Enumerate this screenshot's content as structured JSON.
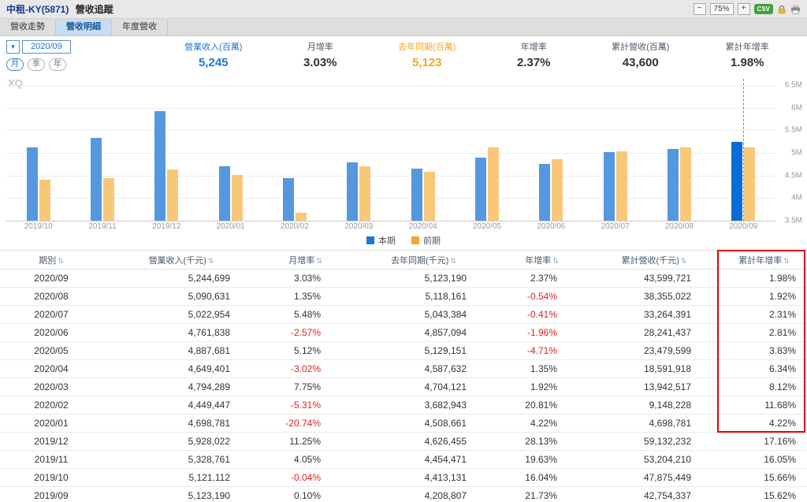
{
  "header": {
    "stock_title": "中租-KY(5871)",
    "page_title": "營收追蹤",
    "zoom_out": "−",
    "zoom_level": "75%",
    "zoom_in": "+",
    "csv_label": "CSV"
  },
  "tabs": [
    {
      "label": "營收走勢",
      "active": false
    },
    {
      "label": "營收明細",
      "active": true
    },
    {
      "label": "年度營收",
      "active": false
    }
  ],
  "period_select": {
    "arrow": "▼",
    "value": "2020/09"
  },
  "freq_buttons": [
    {
      "label": "月",
      "active": true
    },
    {
      "label": "季",
      "active": false
    },
    {
      "label": "年",
      "active": false
    }
  ],
  "stats": [
    {
      "label": "營業收入(百萬)",
      "value": "5,245",
      "color": "blue"
    },
    {
      "label": "月增率",
      "value": "3.03%",
      "color": "dark"
    },
    {
      "label": "去年同期(百萬)",
      "value": "5,123",
      "color": "orange"
    },
    {
      "label": "年增率",
      "value": "2.37%",
      "color": "dark"
    },
    {
      "label": "累計營收(百萬)",
      "value": "43,600",
      "color": "dark"
    },
    {
      "label": "累計年增率",
      "value": "1.98%",
      "color": "dark"
    }
  ],
  "chart_data": {
    "type": "bar",
    "watermark": "XQ",
    "categories": [
      "2019/10",
      "2019/11",
      "2019/12",
      "2020/01",
      "2020/02",
      "2020/03",
      "2020/04",
      "2020/05",
      "2020/06",
      "2020/07",
      "2020/08",
      "2020/09"
    ],
    "series": [
      {
        "name": "本期",
        "color": "#1878d8",
        "values": [
          5.12,
          5.33,
          5.93,
          4.7,
          4.45,
          4.79,
          4.65,
          4.89,
          4.76,
          5.02,
          5.09,
          5.24
        ]
      },
      {
        "name": "前期",
        "color": "#f0a830",
        "values": [
          4.41,
          4.45,
          4.63,
          4.51,
          3.68,
          4.7,
          4.59,
          5.13,
          4.86,
          5.04,
          5.12,
          5.12
        ]
      }
    ],
    "ylim": [
      3.5,
      6.5
    ],
    "ytick_labels": [
      "6.5M",
      "6M",
      "5.5M",
      "5M",
      "4.5M",
      "4M",
      "3.5M"
    ],
    "legend": [
      {
        "label": "本期",
        "color": "#1878d8"
      },
      {
        "label": "前期",
        "color": "#f0a830"
      }
    ],
    "highlight_index": 11,
    "title": "",
    "xlabel": "",
    "ylabel": ""
  },
  "table": {
    "sort_icon": "⇅",
    "headers": [
      "期別",
      "營業收入(千元)",
      "月增率",
      "去年同期(千元)",
      "年增率",
      "累計營收(千元)",
      "累計年增率"
    ],
    "rows": [
      [
        "2020/09",
        "5,244,699",
        "3.03%",
        "5,123,190",
        "2.37%",
        "43,599,721",
        "1.98%"
      ],
      [
        "2020/08",
        "5,090,631",
        "1.35%",
        "5,118,161",
        "-0.54%",
        "38,355,022",
        "1.92%"
      ],
      [
        "2020/07",
        "5,022,954",
        "5.48%",
        "5,043,384",
        "-0.41%",
        "33,264,391",
        "2.31%"
      ],
      [
        "2020/06",
        "4,761,838",
        "-2.57%",
        "4,857,094",
        "-1.96%",
        "28,241,437",
        "2.81%"
      ],
      [
        "2020/05",
        "4,887,681",
        "5.12%",
        "5,129,151",
        "-4.71%",
        "23,479,599",
        "3.83%"
      ],
      [
        "2020/04",
        "4,649,401",
        "-3.02%",
        "4,587,632",
        "1.35%",
        "18,591,918",
        "6.34%"
      ],
      [
        "2020/03",
        "4,794,289",
        "7.75%",
        "4,704,121",
        "1.92%",
        "13,942,517",
        "8.12%"
      ],
      [
        "2020/02",
        "4,449,447",
        "-5.31%",
        "3,682,943",
        "20.81%",
        "9,148,228",
        "11.68%"
      ],
      [
        "2020/01",
        "4,698,781",
        "-20.74%",
        "4,508,661",
        "4.22%",
        "4,698,781",
        "4.22%"
      ],
      [
        "2019/12",
        "5,928,022",
        "11.25%",
        "4,626,455",
        "28.13%",
        "59,132,232",
        "17.16%"
      ],
      [
        "2019/11",
        "5,328,761",
        "4.05%",
        "4,454,471",
        "19.63%",
        "53,204,210",
        "16.05%"
      ],
      [
        "2019/10",
        "5,121,112",
        "-0.04%",
        "4,413,131",
        "16.04%",
        "47,875,449",
        "15.66%"
      ],
      [
        "2019/09",
        "5,123,190",
        "0.10%",
        "4,208,807",
        "21.73%",
        "42,754,337",
        "15.62%"
      ]
    ],
    "highlight": {
      "column": "累計年增率",
      "from_row": "2020/09",
      "to_row": "2020/01"
    }
  }
}
